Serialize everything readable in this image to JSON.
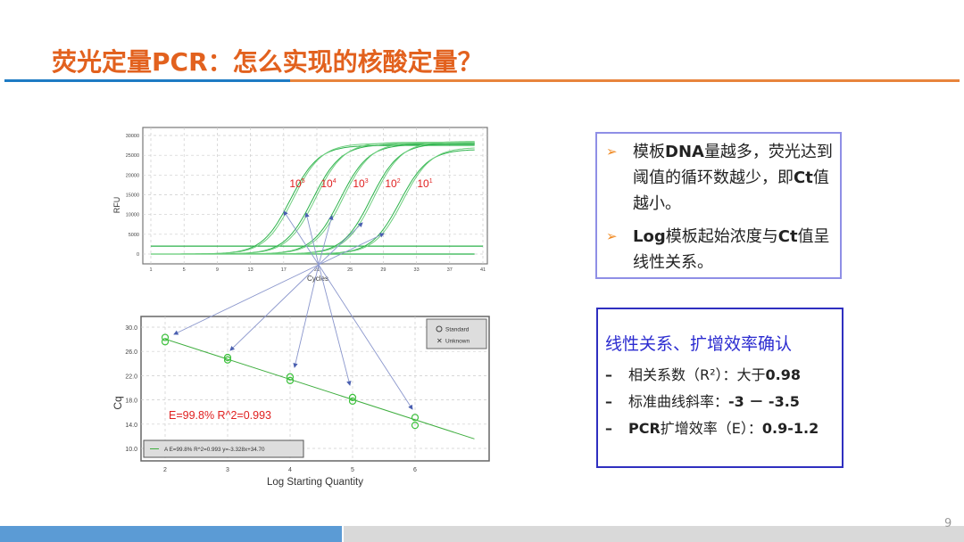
{
  "slide": {
    "title": "荧光定量PCR：怎么实现的核酸定量？",
    "page_number": "9",
    "colors": {
      "title": "#e2611e",
      "rule_blue": "#1e7bc4",
      "rule_orange": "#e8843c",
      "footer_blue": "#5b9bd5",
      "footer_gray": "#d9d9d9"
    }
  },
  "box1": {
    "bullets": [
      {
        "icon": "arrow-bullet-icon",
        "parts": [
          [
            "模板",
            false
          ],
          [
            "DNA",
            true
          ],
          [
            "量越多，荧光达到阈值的循环数越少，即",
            false
          ],
          [
            "Ct",
            true
          ],
          [
            "值越小。",
            false
          ]
        ]
      },
      {
        "icon": "arrow-bullet-icon",
        "parts": [
          [
            "Log",
            true
          ],
          [
            "模板起始浓度与",
            false
          ],
          [
            "Ct",
            true
          ],
          [
            "值呈线性关系。",
            false
          ]
        ]
      }
    ]
  },
  "box2": {
    "title": "线性关系、扩增效率确认",
    "items": [
      {
        "dash": "–",
        "label": "相关系数（R²）：大于",
        "value": "0.98"
      },
      {
        "dash": "–",
        "label": "标准曲线斜率：",
        "value": "-3 － -3.5"
      },
      {
        "dash": "–",
        "label_bold": "PCR",
        "label": "扩增效率（E）：",
        "value": "0.9-1.2"
      }
    ]
  },
  "chart_data": [
    {
      "type": "line",
      "xlabel": "Cycles",
      "ylabel": "RFU",
      "xlim": [
        1,
        41
      ],
      "ylim": [
        -2000,
        31000
      ],
      "xticks": [
        "1",
        "5",
        "9",
        "13",
        "17",
        "21",
        "25",
        "29",
        "33",
        "37",
        "41"
      ],
      "yticks": [
        "30000",
        "25000",
        "20000",
        "15000",
        "10000",
        "5000",
        "0"
      ],
      "grid": true,
      "threshold": 2000,
      "series": [
        {
          "name": "10⁵",
          "label_base": "10",
          "label_exp": "5",
          "midpoint_cycle": 17.8,
          "plateau": 27500,
          "replicates": 2
        },
        {
          "name": "10⁴",
          "label_base": "10",
          "label_exp": "4",
          "midpoint_cycle": 20.5,
          "plateau": 27800,
          "replicates": 2
        },
        {
          "name": "10³",
          "label_base": "10",
          "label_exp": "3",
          "midpoint_cycle": 23.8,
          "plateau": 27800,
          "replicates": 2
        },
        {
          "name": "10²",
          "label_base": "10",
          "label_exp": "2",
          "midpoint_cycle": 27.5,
          "plateau": 28000,
          "replicates": 2
        },
        {
          "name": "10¹",
          "label_base": "10",
          "label_exp": "1",
          "midpoint_cycle": 31.0,
          "plateau": 26500,
          "replicates": 2
        }
      ],
      "line_color": "#2bb24a",
      "label_color": "#e02020"
    },
    {
      "type": "scatter",
      "xlabel": "Log Starting Quantity",
      "ylabel": "Cq",
      "xlim": [
        1.6,
        7.2
      ],
      "ylim": [
        8.5,
        31.5
      ],
      "xticks": [
        "2",
        "3",
        "4",
        "5",
        "6"
      ],
      "yticks": [
        "30.0",
        "26.0",
        "22.0",
        "18.0",
        "14.0",
        "10.0"
      ],
      "grid": true,
      "points": [
        {
          "x": 2,
          "y": 28.3
        },
        {
          "x": 2,
          "y": 27.6
        },
        {
          "x": 3,
          "y": 25.0
        },
        {
          "x": 3,
          "y": 24.6
        },
        {
          "x": 4,
          "y": 21.8
        },
        {
          "x": 4,
          "y": 21.2
        },
        {
          "x": 5,
          "y": 18.4
        },
        {
          "x": 5,
          "y": 17.8
        },
        {
          "x": 6,
          "y": 15.1
        },
        {
          "x": 6,
          "y": 13.8
        }
      ],
      "fit": {
        "slope": -3.328,
        "intercept": 34.7,
        "x_range": [
          2,
          6.95
        ]
      },
      "legend": [
        "Standard",
        "Unknown"
      ],
      "legend_placement": "top-right",
      "fit_legend": "A E=99.8% R^2=0.993 y=-3.328x+34.70",
      "annotation": "E=99.8%  R^2=0.993",
      "annotation_color": "#e02020"
    }
  ]
}
